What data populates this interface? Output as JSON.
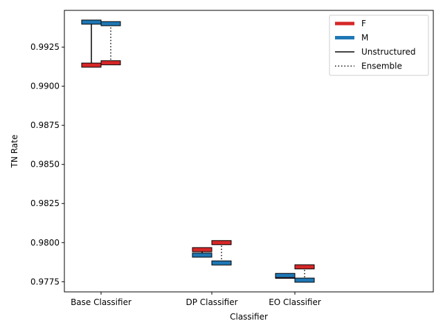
{
  "chart_data": {
    "type": "range",
    "xlabel": "Classifier",
    "ylabel": "TN Rate",
    "ylim": [
      0.97685,
      0.99485
    ],
    "yticks": [
      0.9775,
      0.98,
      0.9825,
      0.985,
      0.9875,
      0.99,
      0.9925
    ],
    "ytick_labels": [
      "0.9775",
      "0.9800",
      "0.9825",
      "0.9850",
      "0.9875",
      "0.9900",
      "0.9925"
    ],
    "categories": [
      "Base Classifier",
      "DP Classifier",
      "EO Classifier"
    ],
    "colors": {
      "F": "#d62728",
      "M": "#1f77b4"
    },
    "methods": [
      {
        "name": "Unstructured",
        "linestyle": "solid",
        "values": {
          "F": [
            0.99135,
            0.97955,
            0.97785
          ],
          "M": [
            0.9941,
            0.9792,
            0.9779
          ]
        }
      },
      {
        "name": "Ensemble",
        "linestyle": "dotted",
        "values": {
          "F": [
            0.9915,
            0.98,
            0.97845
          ],
          "M": [
            0.994,
            0.9787,
            0.9776
          ]
        }
      }
    ],
    "legend": {
      "position": "top-right",
      "entries": [
        {
          "label": "F",
          "kind": "thick",
          "color": "#d62728"
        },
        {
          "label": "M",
          "kind": "thick",
          "color": "#1f77b4"
        },
        {
          "label": "Unstructured",
          "kind": "solid",
          "color": "#000000"
        },
        {
          "label": "Ensemble",
          "kind": "dotted",
          "color": "#000000"
        }
      ]
    }
  }
}
